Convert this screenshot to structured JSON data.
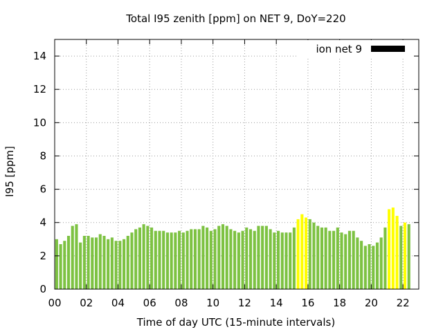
{
  "chart_data": {
    "type": "bar",
    "title": "Total I95 zenith [ppm] on NET 9, DoY=220",
    "xlabel": "Time of day UTC (15-minute intervals)",
    "ylabel": "I95 [ppm]",
    "xlim": [
      0,
      23
    ],
    "ylim": [
      0,
      15
    ],
    "x_ticks": [
      "00",
      "02",
      "04",
      "06",
      "08",
      "10",
      "12",
      "14",
      "16",
      "18",
      "20",
      "22"
    ],
    "x_tick_hours": [
      0,
      2,
      4,
      6,
      8,
      10,
      12,
      14,
      16,
      18,
      20,
      22
    ],
    "y_ticks": [
      "0",
      "2",
      "4",
      "6",
      "8",
      "10",
      "12",
      "14"
    ],
    "y_tick_values": [
      0,
      2,
      4,
      6,
      8,
      10,
      12,
      14
    ],
    "grid": true,
    "legend": {
      "position": "top-right",
      "label": "ion net 9",
      "color": "#000000"
    },
    "interval_hours": 0.25,
    "colors": {
      "normal": "#7dc242",
      "highlight": "#ffff00"
    },
    "series": [
      {
        "values": [
          3.0,
          2.7,
          2.9,
          3.2,
          3.8,
          3.9,
          2.8,
          3.2,
          3.2,
          3.1,
          3.1,
          3.3,
          3.2,
          3.0,
          3.1,
          2.9,
          2.9,
          3.0,
          3.2,
          3.4,
          3.6,
          3.7,
          3.9,
          3.8,
          3.7,
          3.5,
          3.5,
          3.5,
          3.4,
          3.4,
          3.4,
          3.5,
          3.4,
          3.5,
          3.6,
          3.6,
          3.6,
          3.8,
          3.7,
          3.5,
          3.6,
          3.8,
          3.9,
          3.8,
          3.6,
          3.5,
          3.4,
          3.5,
          3.7,
          3.6,
          3.5,
          3.8,
          3.8,
          3.8,
          3.6,
          3.4,
          3.5,
          3.4,
          3.4,
          3.4,
          3.7,
          4.2,
          4.5,
          4.3,
          4.2,
          4.0,
          3.8,
          3.7,
          3.7,
          3.5,
          3.5,
          3.7,
          3.4,
          3.3,
          3.5,
          3.5,
          3.1,
          2.9,
          2.6,
          2.7,
          2.6,
          2.8,
          3.1,
          3.7,
          4.8,
          4.9,
          4.4,
          3.8,
          4.0,
          3.9
        ],
        "highlight": [
          0,
          0,
          0,
          0,
          0,
          0,
          0,
          0,
          0,
          0,
          0,
          0,
          0,
          0,
          0,
          0,
          0,
          0,
          0,
          0,
          0,
          0,
          0,
          0,
          0,
          0,
          0,
          0,
          0,
          0,
          0,
          0,
          0,
          0,
          0,
          0,
          0,
          0,
          0,
          0,
          0,
          0,
          0,
          0,
          0,
          0,
          0,
          0,
          0,
          0,
          0,
          0,
          0,
          0,
          0,
          0,
          0,
          0,
          0,
          0,
          0,
          1,
          1,
          1,
          0,
          0,
          0,
          0,
          0,
          0,
          0,
          0,
          0,
          0,
          0,
          0,
          0,
          0,
          0,
          0,
          0,
          0,
          0,
          0,
          1,
          1,
          1,
          0,
          1,
          0
        ]
      }
    ]
  }
}
